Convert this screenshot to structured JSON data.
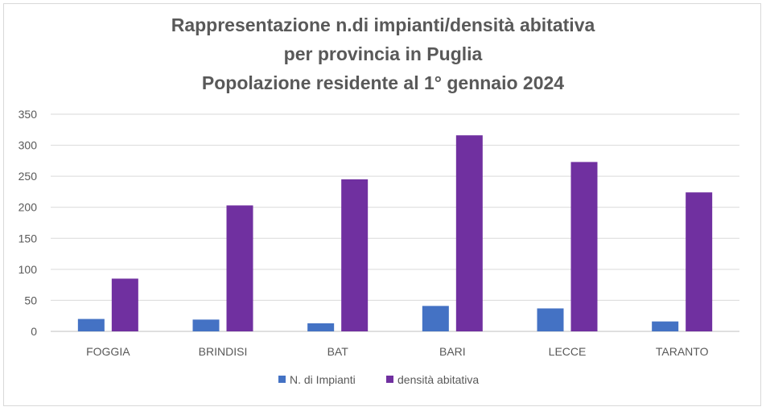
{
  "chart_data": {
    "type": "bar",
    "title_lines": [
      "Rappresentazione n.di impianti/densità abitativa",
      "per provincia in Puglia",
      "Popolazione residente al 1° gennaio 2024"
    ],
    "categories": [
      "FOGGIA",
      "BRINDISI",
      "BAT",
      "BARI",
      "LECCE",
      "TARANTO"
    ],
    "series": [
      {
        "name": "N. di Impianti",
        "color": "#4472c4",
        "values": [
          20,
          19,
          13,
          41,
          37,
          16
        ]
      },
      {
        "name": "densità abitativa",
        "color": "#7030a0",
        "values": [
          85,
          203,
          245,
          316,
          273,
          224
        ]
      }
    ],
    "yticks": [
      "0",
      "50",
      "100",
      "150",
      "200",
      "250",
      "300",
      "350"
    ],
    "ylim": [
      0,
      350
    ],
    "grid": true,
    "legend_position": "bottom"
  }
}
